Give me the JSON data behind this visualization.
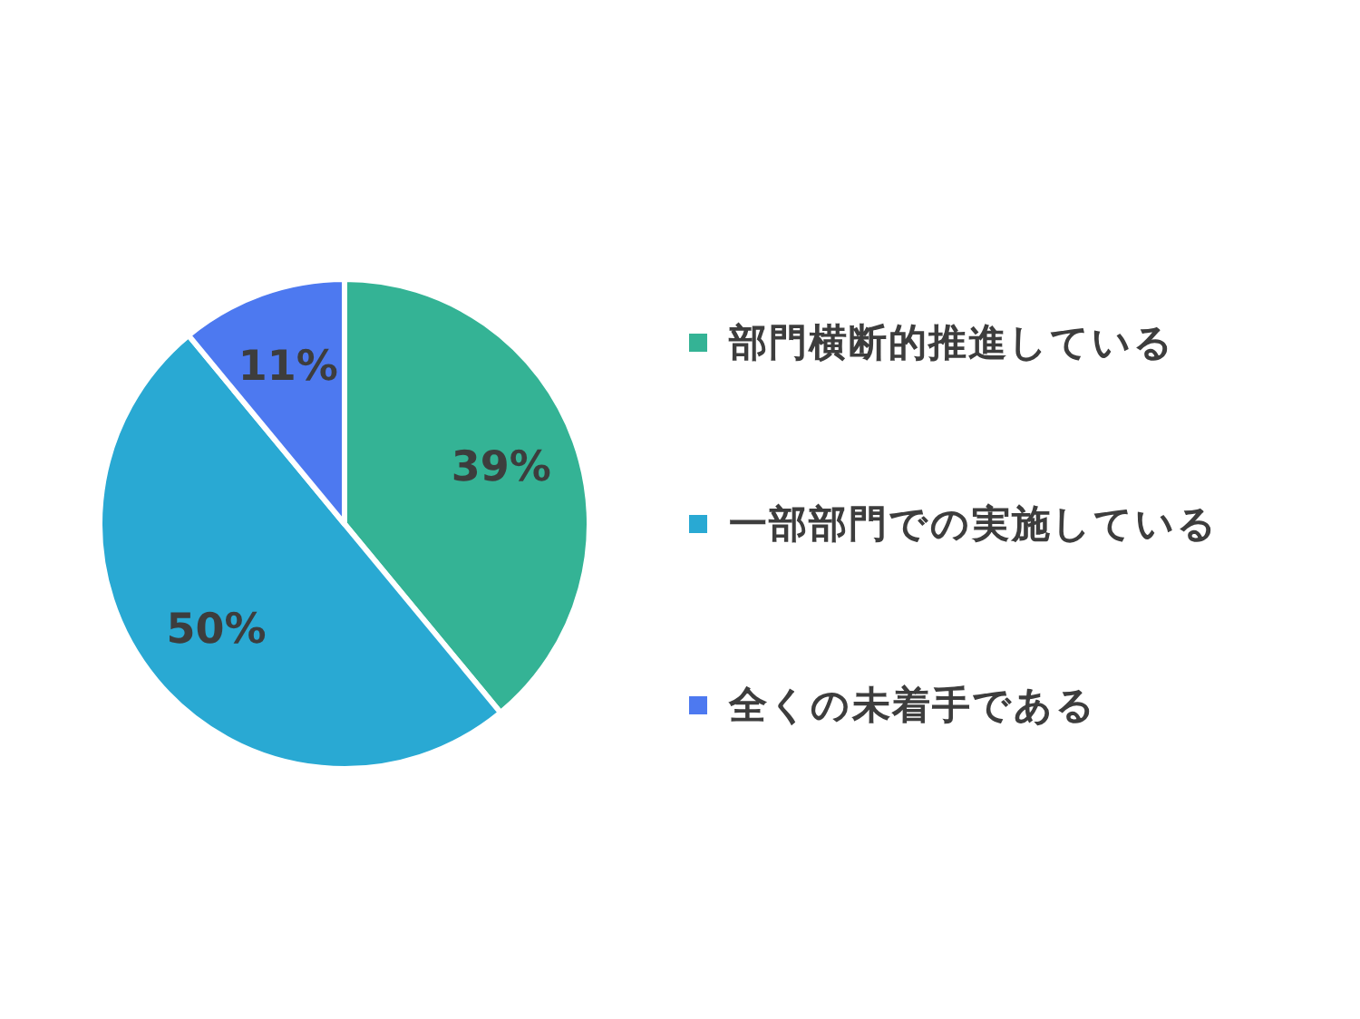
{
  "chart_data": {
    "type": "pie",
    "categories": [
      "部門横断的推進している",
      "一部部門での実施している",
      "全くの未着手である"
    ],
    "values": [
      39,
      50,
      11
    ],
    "colors": [
      "#34b395",
      "#29a9d3",
      "#4d79f0"
    ],
    "value_labels": [
      "39%",
      "50%",
      "11%"
    ],
    "legend": "right"
  }
}
